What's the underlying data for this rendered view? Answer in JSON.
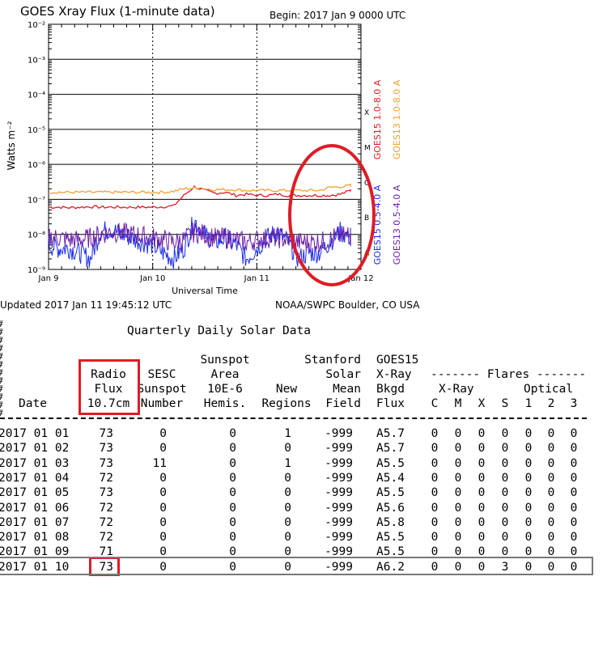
{
  "header": {
    "title": "GOES Xray Flux (1-minute data)",
    "begin": "Begin:  2017 Jan 9 0000 UTC",
    "updated": "Updated 2017 Jan 11 19:45:12 UTC",
    "source": "NOAA/SWPC Boulder, CO USA"
  },
  "chart_data": {
    "type": "line",
    "title": "GOES Xray Flux (1-minute data)",
    "xlabel": "Universal Time",
    "ylabel": "Watts m⁻²",
    "y_scale": "log",
    "ylim": [
      1e-09,
      0.01
    ],
    "y_tick_labels": [
      "10⁻²",
      "10⁻³",
      "10⁻⁴",
      "10⁻⁵",
      "10⁻⁶",
      "10⁻⁷",
      "10⁻⁸",
      "10⁻⁹"
    ],
    "x_tick_labels": [
      "Jan 9",
      "Jan 10",
      "Jan 11",
      "Jan 12"
    ],
    "x": [
      0.0,
      0.1,
      0.2,
      0.3,
      0.4,
      0.5,
      0.6,
      0.7,
      0.8,
      0.9,
      1.0,
      1.1,
      1.2,
      1.3,
      1.4,
      1.5,
      1.6,
      1.7,
      1.8,
      1.9,
      2.0,
      2.1,
      2.2,
      2.3,
      2.4,
      2.5,
      2.6,
      2.7,
      2.8,
      2.9
    ],
    "flare_classes": [
      "X",
      "M",
      "C",
      "B",
      "A"
    ],
    "grid": true,
    "series": [
      {
        "name": "GOES15 1.0-8.0 A",
        "color": "#e01b24",
        "values": [
          6e-08,
          6e-08,
          5.8e-08,
          6e-08,
          6.2e-08,
          6e-08,
          6e-08,
          6e-08,
          6e-08,
          6e-08,
          6e-08,
          6.2e-08,
          6.5e-08,
          1.3e-07,
          2.3e-07,
          1.8e-07,
          1.5e-07,
          1.6e-07,
          1.3e-07,
          1.4e-07,
          1.3e-07,
          1.3e-07,
          1.4e-07,
          1.3e-07,
          1.3e-07,
          1.3e-07,
          1.3e-07,
          1.3e-07,
          1.4e-07,
          1.8e-07
        ]
      },
      {
        "name": "GOES13 1.0-8.0 A",
        "color": "#f0a030",
        "values": [
          1.6e-07,
          1.6e-07,
          1.6e-07,
          1.6e-07,
          1.6e-07,
          1.6e-07,
          1.6e-07,
          1.6e-07,
          1.6e-07,
          1.6e-07,
          1.6e-07,
          1.6e-07,
          1.7e-07,
          2e-07,
          2.1e-07,
          2e-07,
          1.9e-07,
          1.9e-07,
          1.9e-07,
          1.8e-07,
          1.8e-07,
          1.8e-07,
          1.8e-07,
          1.8e-07,
          1.8e-07,
          1.8e-07,
          1.8e-07,
          2.2e-07,
          2.3e-07,
          2.5e-07
        ]
      },
      {
        "name": "GOES15 0.5-4.0 A",
        "color": "#1a2cf0",
        "values": [
          5e-09,
          4e-09,
          4e-09,
          3e-09,
          2e-09,
          1.2e-08,
          1.4e-08,
          1e-08,
          8e-09,
          6e-09,
          5e-09,
          3e-09,
          2e-09,
          4e-09,
          2.5e-08,
          1e-08,
          6e-09,
          8e-09,
          5e-09,
          2e-09,
          4e-09,
          8e-09,
          1.2e-08,
          6e-09,
          2e-09,
          3e-09,
          3e-09,
          6e-09,
          1.2e-08,
          8e-09
        ]
      },
      {
        "name": "GOES13 0.5-4.0 A",
        "color": "#6a1fa8",
        "values": [
          8e-09,
          8e-09,
          7e-09,
          7e-09,
          8e-09,
          1e-08,
          1.2e-08,
          1.1e-08,
          1e-08,
          9e-09,
          8e-09,
          7e-09,
          6e-09,
          7e-09,
          1.2e-08,
          1e-08,
          8e-09,
          8e-09,
          7e-09,
          6e-09,
          7e-09,
          8e-09,
          8e-09,
          7e-09,
          6e-09,
          6e-09,
          6e-09,
          7e-09,
          9e-09,
          9e-09
        ]
      }
    ]
  },
  "table": {
    "title": "Quarterly Daily Solar Data",
    "headers": {
      "radio": [
        "Radio",
        "Flux",
        "10.7cm"
      ],
      "sesc": [
        "SESC",
        "Sunspot",
        "Number"
      ],
      "area": [
        "Sunspot",
        "Area",
        "10E-6",
        "Hemis."
      ],
      "new": [
        "New",
        "Regions"
      ],
      "stanford": [
        "Stanford",
        "Solar",
        "Mean",
        "Field"
      ],
      "goes": [
        "GOES15",
        "X-Ray",
        "Bkgd",
        "Flux"
      ],
      "flares": "------- Flares -------",
      "xray": "X-Ray",
      "optical": "Optical",
      "date": "Date",
      "c": "C",
      "m": "M",
      "x": "X",
      "s": "S",
      "o1": "1",
      "o2": "2",
      "o3": "3"
    },
    "rows": [
      [
        "2017 01 01",
        "73",
        "0",
        "0",
        "1",
        "-999",
        "A5.7",
        "0",
        "0",
        "0",
        "0",
        "0",
        "0",
        "0"
      ],
      [
        "2017 01 02",
        "73",
        "0",
        "0",
        "0",
        "-999",
        "A5.7",
        "0",
        "0",
        "0",
        "0",
        "0",
        "0",
        "0"
      ],
      [
        "2017 01 03",
        "73",
        "11",
        "0",
        "1",
        "-999",
        "A5.5",
        "0",
        "0",
        "0",
        "0",
        "0",
        "0",
        "0"
      ],
      [
        "2017 01 04",
        "72",
        "0",
        "0",
        "0",
        "-999",
        "A5.4",
        "0",
        "0",
        "0",
        "0",
        "0",
        "0",
        "0"
      ],
      [
        "2017 01 05",
        "73",
        "0",
        "0",
        "0",
        "-999",
        "A5.5",
        "0",
        "0",
        "0",
        "0",
        "0",
        "0",
        "0"
      ],
      [
        "2017 01 06",
        "72",
        "0",
        "0",
        "0",
        "-999",
        "A5.6",
        "0",
        "0",
        "0",
        "0",
        "0",
        "0",
        "0"
      ],
      [
        "2017 01 07",
        "72",
        "0",
        "0",
        "0",
        "-999",
        "A5.8",
        "0",
        "0",
        "0",
        "0",
        "0",
        "0",
        "0"
      ],
      [
        "2017 01 08",
        "72",
        "0",
        "0",
        "0",
        "-999",
        "A5.5",
        "0",
        "0",
        "0",
        "0",
        "0",
        "0",
        "0"
      ],
      [
        "2017 01 09",
        "71",
        "0",
        "0",
        "0",
        "-999",
        "A5.5",
        "0",
        "0",
        "0",
        "0",
        "0",
        "0",
        "0"
      ],
      [
        "2017 01 10",
        "73",
        "0",
        "0",
        "0",
        "-999",
        "A6.2",
        "0",
        "0",
        "0",
        "3",
        "0",
        "0",
        "0"
      ]
    ]
  },
  "colors": {
    "highlight": "#e01b24",
    "row_box": "#777777"
  }
}
